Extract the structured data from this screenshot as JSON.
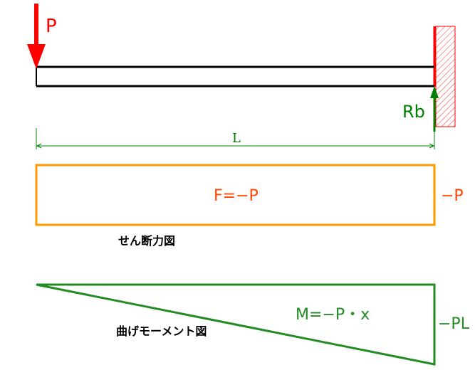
{
  "beam": {
    "load_label": "P",
    "reaction_label": "Rb",
    "length_label": "L"
  },
  "shear_diagram": {
    "title": "せん断力図",
    "formula": "F=−P",
    "end_value": "−P"
  },
  "moment_diagram": {
    "title": "曲げモーメント図",
    "formula": "M=−P・x",
    "end_value": "−PL"
  },
  "colors": {
    "load": "#ff0000",
    "reaction": "#008000",
    "shear": "#ff9900",
    "shear_text": "#ff4500",
    "moment": "#228b22",
    "beam": "#000000"
  }
}
